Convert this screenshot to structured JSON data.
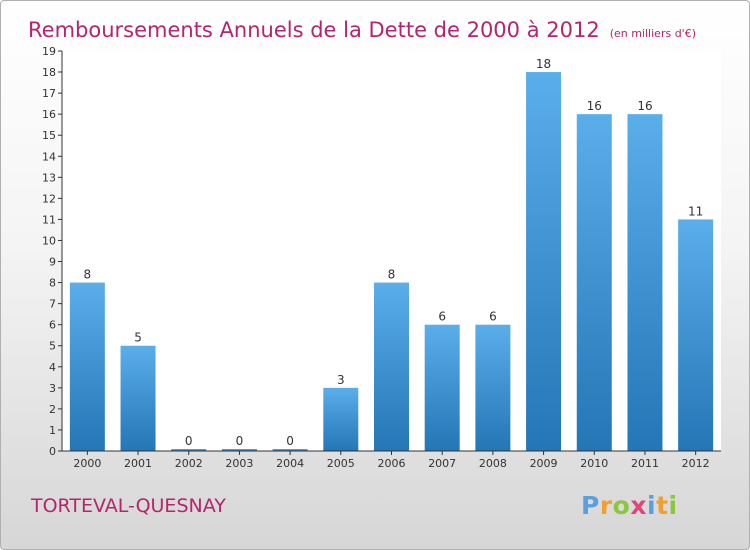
{
  "title": "Remboursements Annuels de la Dette de 2000 à 2012",
  "unit_note": "(en milliers d'€)",
  "location": "TORTEVAL-QUESNAY",
  "brand": {
    "name": "Proxiti",
    "letters": [
      {
        "char": "P",
        "color": "#5aa0dc"
      },
      {
        "char": "r",
        "color": "#f0a030"
      },
      {
        "char": "o",
        "color": "#8cc63f"
      },
      {
        "char": "x",
        "color": "#e0457b"
      },
      {
        "char": "i",
        "color": "#5aa0dc"
      },
      {
        "char": "t",
        "color": "#f0a030"
      },
      {
        "char": "i",
        "color": "#8cc63f"
      }
    ]
  },
  "colors": {
    "title": "#b5246e",
    "bar_top": "#5aaeea",
    "bar_bottom": "#2476b5",
    "axis": "#333333",
    "grid": "#d0d0d0"
  },
  "chart_data": {
    "type": "bar",
    "categories": [
      "2000",
      "2001",
      "2002",
      "2003",
      "2004",
      "2005",
      "2006",
      "2007",
      "2008",
      "2009",
      "2010",
      "2011",
      "2012"
    ],
    "values": [
      8,
      5,
      0,
      0,
      0,
      3,
      8,
      6,
      6,
      18,
      16,
      16,
      11
    ],
    "data_labels": [
      "8",
      "5",
      "0",
      "0",
      "0",
      "3",
      "8",
      "6",
      "6",
      "18",
      "16",
      "16",
      "11"
    ],
    "yticks": [
      0,
      1,
      2,
      3,
      4,
      5,
      6,
      7,
      8,
      9,
      10,
      11,
      12,
      13,
      14,
      15,
      16,
      17,
      18,
      19
    ],
    "ylim": [
      0,
      19
    ],
    "grid": false,
    "legend": "none"
  }
}
